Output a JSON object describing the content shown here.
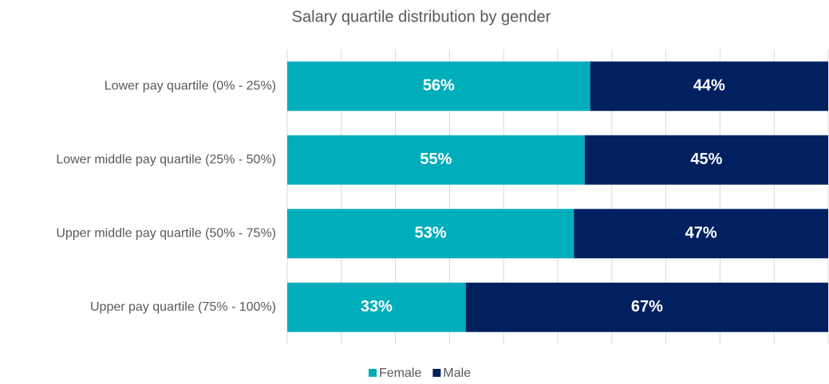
{
  "chart_data": {
    "type": "stacked_barh",
    "title": "Salary quartile distribution by gender",
    "categories": [
      "Lower pay quartile (0% - 25%)",
      "Lower middle pay quartile (25% - 50%)",
      "Upper middle pay quartile (50% - 75%)",
      "Upper pay quartile (75% - 100%)"
    ],
    "series": [
      {
        "name": "Female",
        "color": "#00adbb",
        "values": [
          56,
          55,
          53,
          33
        ],
        "value_labels": [
          "56%",
          "55%",
          "53%",
          "33%"
        ]
      },
      {
        "name": "Male",
        "color": "#002060",
        "values": [
          44,
          45,
          47,
          67
        ],
        "value_labels": [
          "44%",
          "45%",
          "47%",
          "67%"
        ]
      }
    ],
    "xlim": [
      0,
      100
    ],
    "xticks": [
      0,
      10,
      20,
      30,
      40,
      50,
      60,
      70,
      80,
      90,
      100
    ],
    "grid": true,
    "legend": "bottom"
  }
}
